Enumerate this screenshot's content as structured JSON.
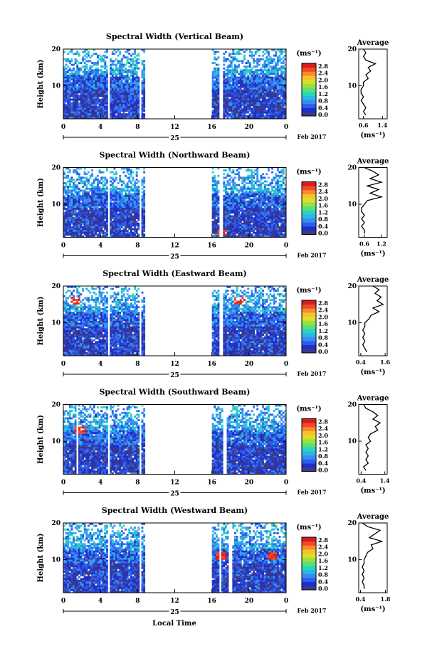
{
  "colorbar": {
    "unit": "(ms⁻¹)",
    "ticks": [
      "2.8",
      "2.4",
      "2.0",
      "1.6",
      "1.2",
      "0.8",
      "0.4",
      "0.0"
    ],
    "colors": [
      "#3a3a8a",
      "#1f2fc9",
      "#2c5cf0",
      "#3a8cf2",
      "#28b8e8",
      "#2ad6b8",
      "#5ae07a",
      "#9de03c",
      "#d8e02c",
      "#f7c22a",
      "#f88a2a",
      "#ef4a2a",
      "#d81c1c"
    ]
  },
  "xaxis": {
    "ticks": [
      "0",
      "4",
      "8",
      "12",
      "16",
      "20",
      "0"
    ],
    "day": "25",
    "month": "Feb 2017",
    "xlabel": "Local Time"
  },
  "common": {
    "ylabel": "Height (km)",
    "yticks": [
      "20",
      "10"
    ],
    "avg_title": "Average",
    "avg_unit": "(ms⁻¹)"
  },
  "chart_data": [
    {
      "type": "heatmap",
      "title": "Spectral Width (Vertical Beam)",
      "x_range_hours": [
        0,
        24
      ],
      "y_range_km": [
        1,
        20
      ],
      "color_range_ms": [
        0.0,
        3.0
      ],
      "data_gaps_hours": [
        [
          4.75,
          4.95
        ],
        [
          5.35,
          5.5
        ],
        [
          5.9,
          6.05
        ],
        [
          8.25,
          8.5
        ],
        [
          8.8,
          16.0
        ],
        [
          16.8,
          17.3
        ]
      ],
      "high_values": [],
      "average_profile": {
        "xticks": [
          "0.6",
          "1.4"
        ],
        "xlim": [
          0.4,
          1.6
        ],
        "height_km": [
          20,
          19,
          18,
          17,
          16,
          15,
          14,
          13,
          12,
          11,
          10,
          9,
          8,
          7,
          6,
          5,
          4,
          3,
          2
        ],
        "width_ms": [
          0.6,
          0.7,
          0.6,
          0.7,
          1.1,
          0.8,
          0.9,
          0.7,
          0.8,
          0.6,
          0.6,
          0.5,
          0.5,
          0.6,
          0.5,
          0.6,
          0.7,
          0.6,
          0.7
        ]
      }
    },
    {
      "type": "heatmap",
      "title": "Spectral Width (Northward Beam)",
      "x_range_hours": [
        0,
        24
      ],
      "y_range_km": [
        1,
        20
      ],
      "color_range_ms": [
        0.0,
        3.0
      ],
      "data_gaps_hours": [
        [
          4.75,
          4.95
        ],
        [
          5.35,
          5.5
        ],
        [
          5.9,
          6.05
        ],
        [
          8.25,
          8.5
        ],
        [
          8.8,
          16.0
        ],
        [
          16.8,
          17.3
        ]
      ],
      "high_values": [
        [
          17.1,
          2.2
        ]
      ],
      "average_profile": {
        "xticks": [
          "0.6",
          "1.2"
        ],
        "xlim": [
          0.4,
          1.4
        ],
        "height_km": [
          20,
          19,
          18,
          17,
          16,
          15,
          14,
          13,
          12,
          11,
          10,
          9,
          8,
          7,
          6,
          5,
          4,
          3,
          2
        ],
        "width_ms": [
          0.6,
          0.9,
          1.1,
          0.8,
          1.2,
          0.7,
          1.1,
          0.8,
          1.2,
          0.7,
          0.6,
          0.5,
          0.5,
          0.6,
          0.5,
          0.6,
          0.5,
          0.6,
          0.6
        ]
      }
    },
    {
      "type": "heatmap",
      "title": "Spectral Width (Eastward Beam)",
      "x_range_hours": [
        0,
        24
      ],
      "y_range_km": [
        1,
        20
      ],
      "color_range_ms": [
        0.0,
        3.0
      ],
      "data_gaps_hours": [
        [
          4.75,
          4.95
        ],
        [
          5.35,
          5.5
        ],
        [
          5.9,
          6.05
        ],
        [
          8.25,
          8.5
        ],
        [
          8.8,
          16.0
        ],
        [
          16.8,
          17.3
        ]
      ],
      "high_values": [
        [
          1.2,
          16.0
        ],
        [
          19.0,
          16.0
        ]
      ],
      "average_profile": {
        "xticks": [
          "0.4",
          "1.6"
        ],
        "xlim": [
          0.3,
          1.7
        ],
        "height_km": [
          20,
          19,
          18,
          17,
          16,
          15,
          14,
          13,
          12,
          11,
          10,
          9,
          8,
          7,
          6,
          5,
          4,
          3,
          2
        ],
        "width_ms": [
          1.0,
          1.3,
          1.1,
          1.4,
          1.2,
          1.5,
          1.0,
          1.3,
          0.9,
          0.8,
          0.6,
          0.6,
          0.5,
          0.6,
          0.5,
          0.6,
          0.5,
          0.6,
          0.7
        ]
      }
    },
    {
      "type": "heatmap",
      "title": "Spectral Width (Southward Beam)",
      "x_range_hours": [
        0,
        24
      ],
      "y_range_km": [
        1,
        20
      ],
      "color_range_ms": [
        0.0,
        3.0
      ],
      "data_gaps_hours": [
        [
          1.5,
          1.7
        ],
        [
          4.75,
          4.95
        ],
        [
          5.35,
          5.5
        ],
        [
          5.9,
          6.05
        ],
        [
          8.25,
          8.5
        ],
        [
          8.8,
          16.0
        ],
        [
          17.3,
          17.6
        ]
      ],
      "high_values": [
        [
          1.8,
          13.0
        ]
      ],
      "average_profile": {
        "xticks": [
          "0.4",
          "1.4"
        ],
        "xlim": [
          0.3,
          1.5
        ],
        "height_km": [
          20,
          19,
          18,
          17,
          16,
          15,
          14,
          13,
          12,
          11,
          10,
          9,
          8,
          7,
          6,
          5,
          4,
          3,
          2
        ],
        "width_ms": [
          0.5,
          0.6,
          0.9,
          1.1,
          0.9,
          1.2,
          1.0,
          1.1,
          0.8,
          0.7,
          0.8,
          0.6,
          0.7,
          0.6,
          0.7,
          0.6,
          0.7,
          0.5,
          0.6
        ]
      }
    },
    {
      "type": "heatmap",
      "title": "Spectral Width (Westward Beam)",
      "x_range_hours": [
        0,
        24
      ],
      "y_range_km": [
        1,
        20
      ],
      "color_range_ms": [
        0.0,
        3.0
      ],
      "data_gaps_hours": [
        [
          4.75,
          4.95
        ],
        [
          5.35,
          5.5
        ],
        [
          5.9,
          6.05
        ],
        [
          8.25,
          8.5
        ],
        [
          8.8,
          16.0
        ],
        [
          16.8,
          17.1
        ],
        [
          17.9,
          18.2
        ]
      ],
      "high_values": [
        [
          17.0,
          11.0
        ],
        [
          22.5,
          11.0
        ]
      ],
      "average_profile": {
        "xticks": [
          "0.4",
          "1.8"
        ],
        "xlim": [
          0.3,
          1.9
        ],
        "height_km": [
          20,
          19,
          18,
          17,
          16,
          15,
          14,
          13,
          12,
          11,
          10,
          9,
          8,
          7,
          6,
          5,
          4,
          3,
          2
        ],
        "width_ms": [
          0.5,
          0.8,
          1.5,
          1.2,
          0.9,
          1.6,
          1.0,
          1.1,
          0.8,
          0.7,
          0.6,
          0.6,
          0.5,
          0.6,
          0.5,
          0.6,
          0.5,
          0.6,
          0.6
        ]
      }
    }
  ]
}
